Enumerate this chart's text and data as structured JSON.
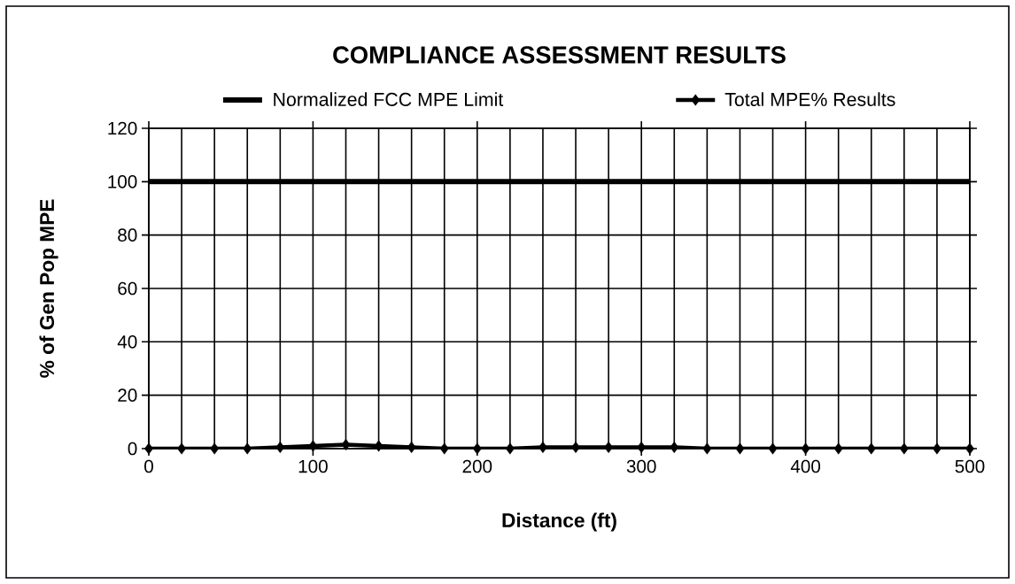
{
  "chart_data": {
    "type": "line",
    "title": "COMPLIANCE ASSESSMENT RESULTS",
    "xlabel": "Distance (ft)",
    "ylabel": "% of Gen Pop MPE",
    "series": [
      {
        "name": "Total MPE% Results",
        "color": "#000000",
        "marker": "diamond",
        "x": [
          0,
          20,
          40,
          60,
          80,
          100,
          120,
          140,
          160,
          180,
          200,
          220,
          240,
          260,
          280,
          300,
          320,
          340,
          360,
          380,
          400,
          420,
          440,
          460,
          480,
          500
        ],
        "values": [
          0,
          0,
          0,
          0,
          0.5,
          1,
          1.5,
          1,
          0.5,
          0,
          0,
          0,
          0.5,
          0.5,
          0.5,
          0.5,
          0.5,
          0,
          0,
          0,
          0,
          0,
          0,
          0,
          0,
          0
        ]
      }
    ],
    "ref_lines": [
      {
        "axis": "y",
        "value": 100,
        "label": "Normalized FCC MPE Limit",
        "color": "#000000",
        "line_style": "solid"
      }
    ],
    "xlim": [
      0,
      500
    ],
    "ylim": [
      0,
      120
    ],
    "xticks": [
      0,
      {
        "value": 20,
        "label": null
      },
      {
        "value": 40,
        "label": null
      },
      {
        "value": 60,
        "label": null
      },
      {
        "value": 80,
        "label": null
      },
      100,
      {
        "value": 120,
        "label": null
      },
      {
        "value": 140,
        "label": null
      },
      {
        "value": 160,
        "label": null
      },
      {
        "value": 180,
        "label": null
      },
      200,
      {
        "value": 220,
        "label": null
      },
      {
        "value": 240,
        "label": null
      },
      {
        "value": 260,
        "label": null
      },
      {
        "value": 280,
        "label": null
      },
      300,
      {
        "value": 320,
        "label": null
      },
      {
        "value": 340,
        "label": null
      },
      {
        "value": 360,
        "label": null
      },
      {
        "value": 380,
        "label": null
      },
      400,
      {
        "value": 420,
        "label": null
      },
      {
        "value": 440,
        "label": null
      },
      {
        "value": 460,
        "label": null
      },
      {
        "value": 480,
        "label": null
      },
      500
    ],
    "yticks": [
      0,
      20,
      40,
      60,
      80,
      100,
      120
    ],
    "grid": true,
    "legend": "top"
  }
}
